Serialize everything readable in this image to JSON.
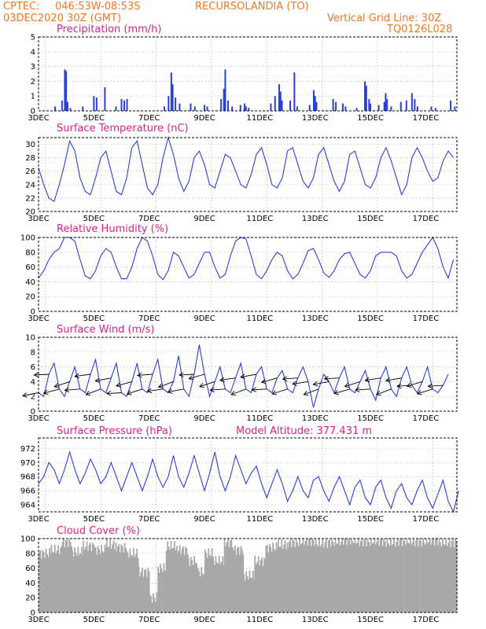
{
  "header": {
    "source": "CPTEC:",
    "coords": "046:53W-08:53S",
    "location": "RECURSOLANDIA (TO)",
    "date": "03DEC2020 30Z (GMT)",
    "grid_note": "Vertical Grid Line: 30Z",
    "code": "TQ0126L028"
  },
  "colors": {
    "header": "#f07820",
    "title": "#e0208a",
    "series": "#2a3fd6",
    "cloud": "#a8a8a8"
  },
  "x_labels": [
    "3DEC",
    "5DEC",
    "7DEC",
    "9DEC",
    "11DEC",
    "13DEC",
    "15DEC",
    "17DEC"
  ],
  "chart_data": [
    {
      "type": "bar",
      "title": "Precipitation (mm/h)",
      "ylim": [
        0,
        5
      ],
      "yticks": [
        "0",
        "1",
        "2",
        "3",
        "4",
        "5"
      ],
      "x_range_days": [
        3.0,
        18.125
      ],
      "x_unit": "day of December 2020",
      "bars": [
        [
          3.6,
          0.3
        ],
        [
          3.85,
          0.7
        ],
        [
          3.95,
          2.8
        ],
        [
          4.0,
          2.7
        ],
        [
          4.05,
          0.6
        ],
        [
          4.15,
          0.2
        ],
        [
          4.6,
          0.3
        ],
        [
          5.0,
          1.0
        ],
        [
          5.1,
          0.9
        ],
        [
          5.4,
          1.6
        ],
        [
          5.8,
          0.3
        ],
        [
          6.0,
          0.8
        ],
        [
          6.1,
          0.7
        ],
        [
          6.2,
          0.8
        ],
        [
          7.55,
          0.3
        ],
        [
          7.7,
          1.0
        ],
        [
          7.8,
          2.6
        ],
        [
          7.85,
          1.8
        ],
        [
          7.95,
          0.9
        ],
        [
          8.1,
          0.5
        ],
        [
          8.5,
          0.5
        ],
        [
          8.65,
          0.3
        ],
        [
          9.0,
          0.4
        ],
        [
          9.1,
          0.3
        ],
        [
          9.6,
          0.8
        ],
        [
          9.7,
          1.5
        ],
        [
          9.75,
          2.8
        ],
        [
          9.85,
          0.7
        ],
        [
          10.0,
          0.3
        ],
        [
          10.3,
          0.4
        ],
        [
          10.45,
          0.5
        ],
        [
          10.5,
          0.3
        ],
        [
          10.6,
          0.2
        ],
        [
          11.4,
          0.5
        ],
        [
          11.55,
          1.0
        ],
        [
          11.7,
          1.8
        ],
        [
          11.75,
          1.3
        ],
        [
          11.8,
          0.7
        ],
        [
          12.1,
          0.7
        ],
        [
          12.25,
          2.6
        ],
        [
          12.35,
          0.3
        ],
        [
          12.8,
          0.4
        ],
        [
          12.95,
          1.4
        ],
        [
          13.0,
          1.0
        ],
        [
          13.05,
          0.6
        ],
        [
          13.65,
          0.8
        ],
        [
          13.75,
          0.6
        ],
        [
          14.0,
          0.5
        ],
        [
          14.1,
          0.3
        ],
        [
          14.5,
          0.2
        ],
        [
          14.8,
          2.0
        ],
        [
          14.85,
          1.7
        ],
        [
          14.95,
          0.8
        ],
        [
          15.0,
          0.5
        ],
        [
          15.3,
          0.4
        ],
        [
          15.5,
          0.6
        ],
        [
          15.55,
          1.2
        ],
        [
          15.6,
          0.8
        ],
        [
          15.75,
          0.3
        ],
        [
          16.1,
          0.6
        ],
        [
          16.3,
          0.7
        ],
        [
          16.5,
          1.2
        ],
        [
          16.6,
          0.8
        ],
        [
          16.7,
          0.3
        ],
        [
          17.2,
          0.3
        ],
        [
          17.35,
          0.2
        ],
        [
          17.9,
          0.7
        ],
        [
          18.05,
          0.3
        ]
      ]
    },
    {
      "type": "line",
      "title": "Surface Temperature (nC)",
      "ylim": [
        20,
        31
      ],
      "yticks": [
        "20",
        "22",
        "24",
        "26",
        "28",
        "30"
      ],
      "x_range_days": [
        3.0,
        18.125
      ],
      "values": [
        26.5,
        24,
        22,
        21.5,
        24,
        27,
        30.5,
        29,
        25,
        23,
        22.5,
        25,
        28,
        29,
        26,
        23,
        22.5,
        25,
        29.5,
        30.5,
        27,
        23.5,
        22.5,
        24,
        28,
        31,
        28.5,
        25,
        23,
        24.5,
        28,
        29,
        27,
        24,
        23.5,
        26,
        28.5,
        28,
        26,
        24,
        23.5,
        25.5,
        28.5,
        29.5,
        27,
        24,
        23.5,
        25,
        29,
        29.5,
        27,
        24.5,
        23.5,
        25,
        28.5,
        29.5,
        27,
        24.5,
        23,
        24.5,
        28.5,
        29,
        26.5,
        24,
        23.5,
        25,
        28,
        29.5,
        27.5,
        25,
        22.5,
        24,
        28,
        29.5,
        28,
        26,
        24.5,
        25,
        27.5,
        29,
        28
      ],
      "step_hours": 4.5
    },
    {
      "type": "line",
      "title": "Relative Humidity (%)",
      "ylim": [
        0,
        100
      ],
      "yticks": [
        "0",
        "20",
        "40",
        "60",
        "80",
        "100"
      ],
      "x_range_days": [
        3.0,
        18.125
      ],
      "values": [
        45,
        55,
        70,
        80,
        85,
        100,
        100,
        95,
        70,
        48,
        44,
        55,
        75,
        85,
        80,
        60,
        44,
        44,
        60,
        85,
        100,
        95,
        75,
        50,
        43,
        55,
        80,
        75,
        60,
        45,
        50,
        65,
        80,
        80,
        60,
        45,
        50,
        75,
        95,
        100,
        98,
        75,
        50,
        44,
        55,
        70,
        80,
        75,
        55,
        44,
        50,
        65,
        82,
        85,
        70,
        52,
        46,
        55,
        70,
        78,
        80,
        65,
        50,
        45,
        55,
        75,
        80,
        80,
        80,
        75,
        55,
        45,
        50,
        65,
        80,
        90,
        100,
        85,
        60,
        45,
        70
      ],
      "step_hours": 4.5
    },
    {
      "type": "line",
      "title": "Surface Wind (m/s)",
      "ylim": [
        0,
        10
      ],
      "yticks": [
        "0",
        "2",
        "4",
        "6",
        "8",
        "10"
      ],
      "x_range_days": [
        3.0,
        18.125
      ],
      "values": [
        2.5,
        2,
        5,
        6.5,
        3,
        2,
        4,
        6,
        3,
        2.5,
        5,
        7,
        3,
        2.5,
        4.5,
        6.5,
        2.5,
        2,
        4,
        6.5,
        3,
        2.5,
        5,
        7,
        3,
        2.5,
        4,
        7.5,
        3,
        2,
        5,
        9,
        5,
        2,
        4,
        6,
        3,
        2.5,
        4.5,
        6.5,
        3,
        2.5,
        5,
        6,
        3,
        2.5,
        4.5,
        5.5,
        3,
        2.5,
        4.5,
        6,
        4,
        0.5,
        3,
        5,
        4,
        2.5,
        4.5,
        6,
        3,
        2.5,
        4,
        5.5,
        3,
        1.5,
        4.5,
        6,
        3,
        2,
        4.5,
        6,
        3.5,
        2.5,
        4,
        6,
        3,
        2.5,
        3.5,
        5
      ],
      "step_hours": 4.5,
      "arrows_every": 2
    },
    {
      "type": "line",
      "title": "Surface Pressure (hPa)",
      "annotation": "Model Altitude: 377.431 m",
      "ylim": [
        963,
        973.5
      ],
      "yticks": [
        "964",
        "966",
        "968",
        "970",
        "972"
      ],
      "x_range_days": [
        3.0,
        18.125
      ],
      "values": [
        967,
        968,
        970,
        969,
        967,
        969,
        971.5,
        969,
        967,
        968.5,
        970.5,
        969,
        967,
        968,
        970,
        968,
        966,
        968,
        970,
        968,
        966,
        968,
        970.5,
        968,
        966.5,
        968,
        971,
        968,
        966.5,
        968.5,
        971,
        968.5,
        966,
        968.5,
        971.5,
        968,
        966,
        968,
        971,
        969,
        967,
        968.5,
        969.5,
        967,
        965,
        967,
        969,
        967,
        964.5,
        966,
        968,
        966,
        965,
        967.5,
        968,
        966,
        964.5,
        966.5,
        968,
        966,
        964,
        966.5,
        967.5,
        965,
        964,
        966.5,
        967.5,
        965,
        963.5,
        966,
        967,
        965,
        964,
        966,
        967.5,
        965,
        963.5,
        965.5,
        967.5,
        964.5,
        963,
        966
      ],
      "step_hours": 4.5
    },
    {
      "type": "bar",
      "title": "Cloud Cover (%)",
      "ylim": [
        0,
        100
      ],
      "yticks": [
        "0",
        "20",
        "40",
        "60",
        "80",
        "100"
      ],
      "x_range_days": [
        3.0,
        18.125
      ],
      "segments": [
        [
          3.0,
          3.4,
          80
        ],
        [
          3.4,
          3.8,
          85
        ],
        [
          3.8,
          4.2,
          95
        ],
        [
          4.2,
          4.6,
          82
        ],
        [
          4.6,
          5.0,
          90
        ],
        [
          5.0,
          5.4,
          85
        ],
        [
          5.4,
          5.8,
          92
        ],
        [
          5.8,
          6.2,
          88
        ],
        [
          6.2,
          6.6,
          80
        ],
        [
          6.6,
          7.0,
          55
        ],
        [
          7.0,
          7.3,
          20
        ],
        [
          7.3,
          7.6,
          60
        ],
        [
          7.6,
          8.0,
          90
        ],
        [
          8.0,
          8.4,
          85
        ],
        [
          8.4,
          8.7,
          70
        ],
        [
          8.7,
          9.0,
          55
        ],
        [
          9.0,
          9.3,
          80
        ],
        [
          9.3,
          9.7,
          70
        ],
        [
          9.7,
          10.0,
          95
        ],
        [
          10.0,
          10.4,
          85
        ],
        [
          10.4,
          10.8,
          50
        ],
        [
          10.8,
          11.2,
          70
        ],
        [
          11.2,
          11.6,
          88
        ],
        [
          11.6,
          12.0,
          92
        ],
        [
          12.0,
          12.5,
          95
        ],
        [
          12.5,
          13.0,
          97
        ],
        [
          13.0,
          13.5,
          94
        ],
        [
          13.5,
          14.0,
          96
        ],
        [
          14.0,
          14.5,
          98
        ],
        [
          14.5,
          15.0,
          96
        ],
        [
          15.0,
          15.5,
          97
        ],
        [
          15.5,
          16.0,
          95
        ],
        [
          16.0,
          16.5,
          97
        ],
        [
          16.5,
          17.0,
          96
        ],
        [
          17.0,
          17.5,
          98
        ],
        [
          17.5,
          18.125,
          95
        ]
      ]
    }
  ]
}
